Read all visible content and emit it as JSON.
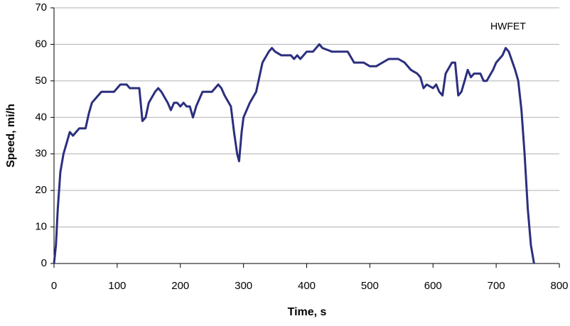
{
  "chart_data": {
    "type": "line",
    "annotation": "HWFET",
    "xlabel": "Time, s",
    "ylabel": "Speed, mi/h",
    "x": [
      0,
      3,
      6,
      10,
      15,
      20,
      25,
      30,
      35,
      40,
      50,
      55,
      60,
      70,
      75,
      85,
      95,
      100,
      105,
      115,
      120,
      130,
      135,
      140,
      145,
      150,
      160,
      165,
      170,
      180,
      185,
      190,
      195,
      200,
      205,
      210,
      215,
      220,
      225,
      230,
      235,
      245,
      250,
      255,
      260,
      265,
      270,
      280,
      285,
      290,
      293,
      297,
      300,
      310,
      320,
      330,
      340,
      345,
      350,
      360,
      375,
      380,
      385,
      390,
      395,
      400,
      410,
      420,
      425,
      440,
      465,
      475,
      490,
      500,
      510,
      520,
      530,
      545,
      555,
      565,
      575,
      580,
      585,
      590,
      600,
      605,
      610,
      615,
      620,
      630,
      635,
      640,
      645,
      650,
      655,
      660,
      665,
      675,
      680,
      685,
      695,
      700,
      710,
      715,
      720,
      730,
      735,
      740,
      745,
      750,
      755,
      760
    ],
    "series": [
      {
        "name": "HWFET",
        "color": "#2b2f7e",
        "values": [
          0,
          5,
          15,
          25,
          30,
          33,
          36,
          35,
          36,
          37,
          37,
          41,
          44,
          46,
          47,
          47,
          47,
          48,
          49,
          49,
          48,
          48,
          48,
          39,
          40,
          44,
          47,
          48,
          47,
          44,
          42,
          44,
          44,
          43,
          44,
          43,
          43,
          40,
          43,
          45,
          47,
          47,
          47,
          48,
          49,
          48,
          46,
          43,
          36,
          30,
          28,
          36,
          40,
          44,
          47,
          55,
          58,
          59,
          58,
          57,
          57,
          56,
          57,
          56,
          57,
          58,
          58,
          60,
          59,
          58,
          58,
          55,
          55,
          54,
          54,
          55,
          56,
          56,
          55,
          53,
          52,
          51,
          48,
          49,
          48,
          49,
          47,
          46,
          52,
          55,
          55,
          46,
          47,
          50,
          53,
          51,
          52,
          52,
          50,
          50,
          53,
          55,
          57,
          59,
          58,
          53,
          50,
          42,
          30,
          15,
          5,
          0
        ]
      }
    ],
    "xlim": [
      0,
      800
    ],
    "xticks": [
      0,
      100,
      200,
      300,
      400,
      500,
      600,
      700,
      800
    ],
    "ylim": [
      0,
      70
    ],
    "yticks": [
      0,
      10,
      20,
      30,
      40,
      50,
      60,
      70
    ],
    "grid": true
  }
}
